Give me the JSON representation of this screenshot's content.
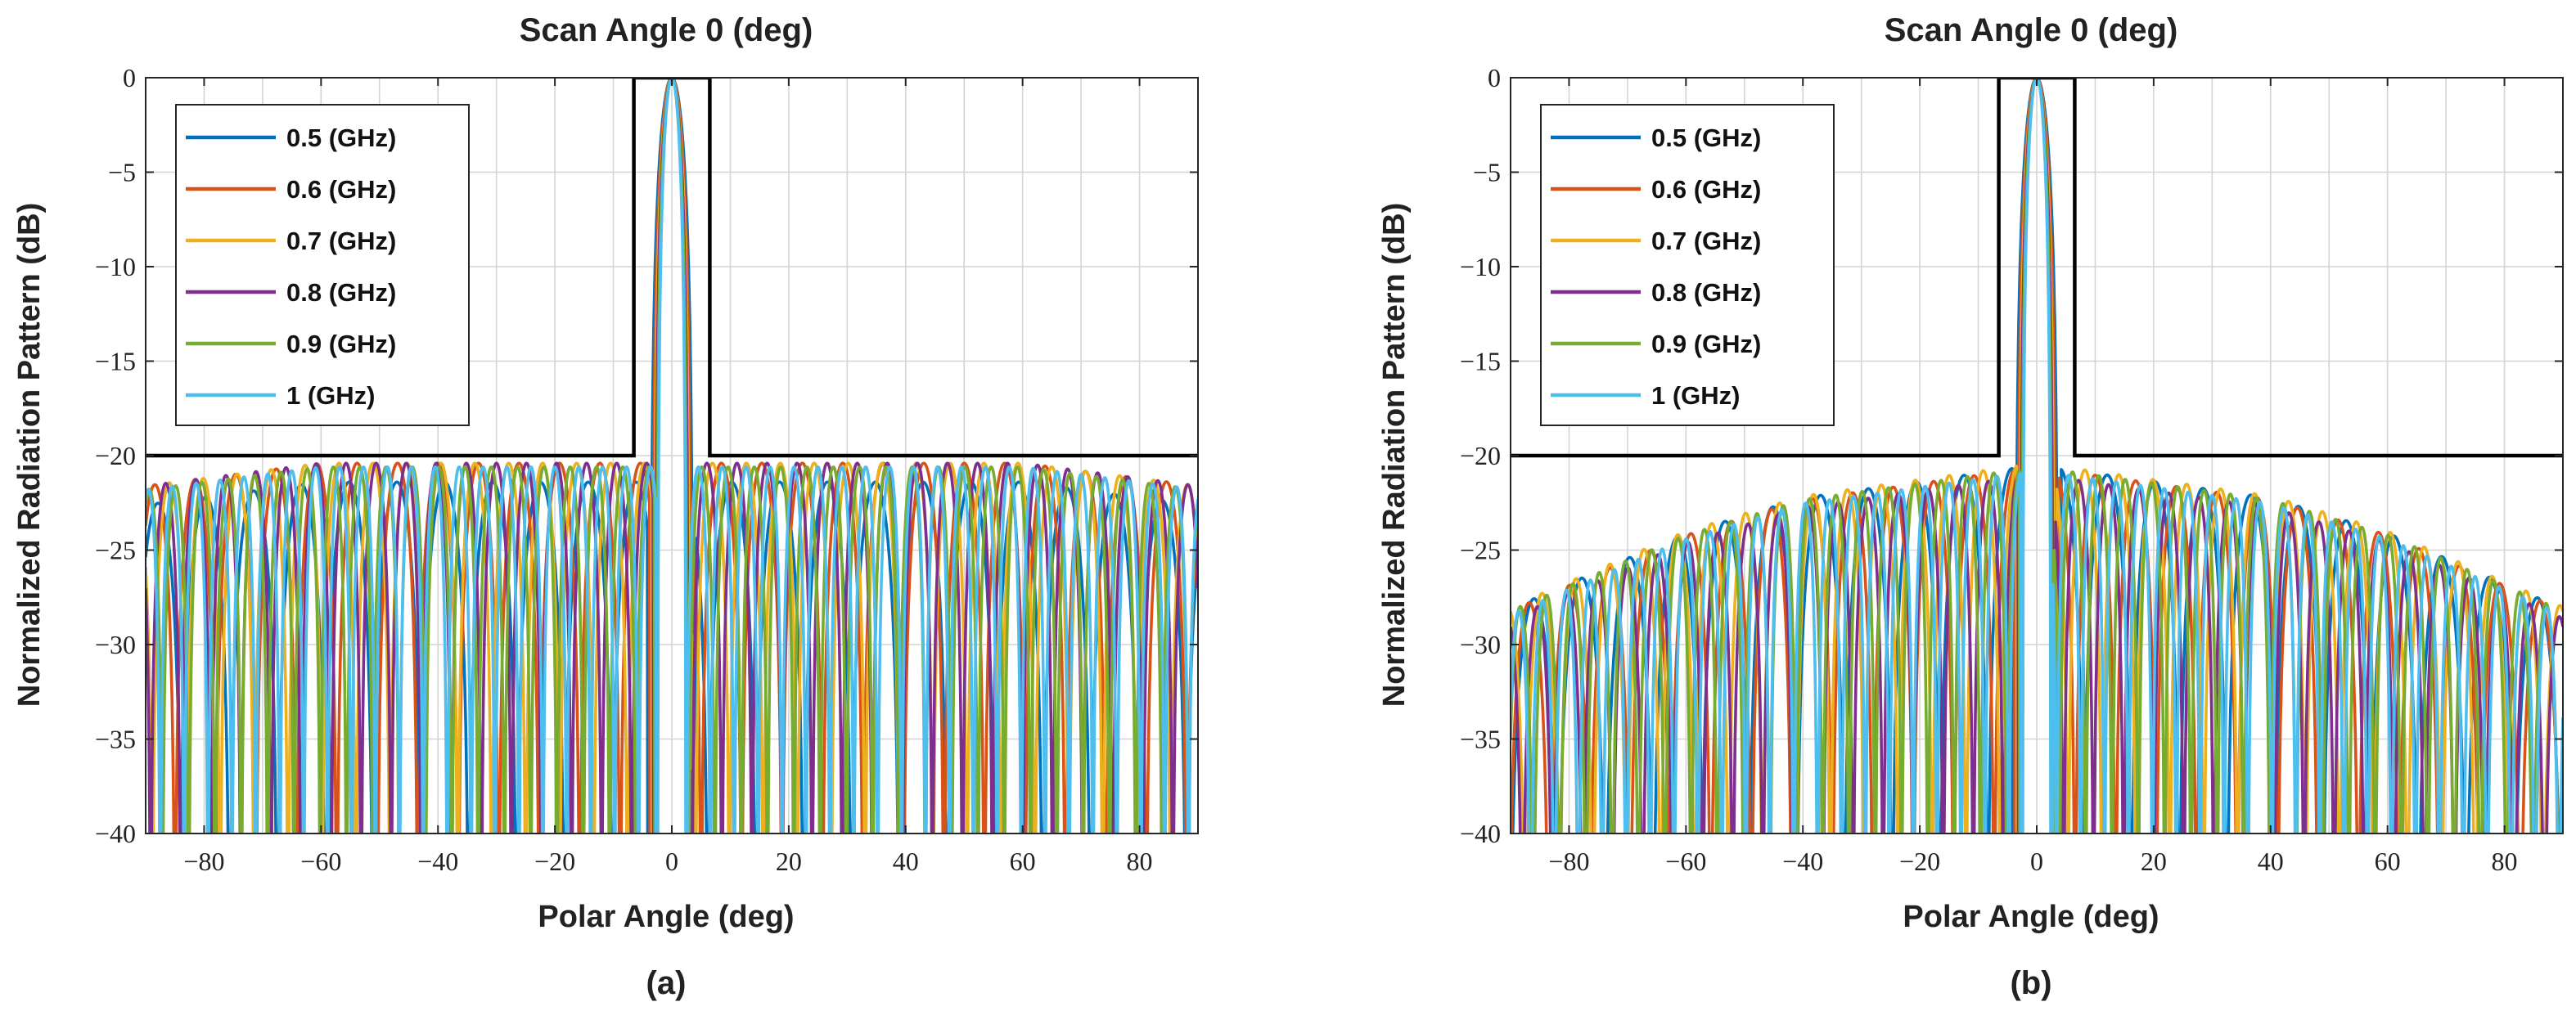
{
  "chart_data": [
    {
      "type": "line",
      "panel_label": "(a)",
      "title": "Scan Angle 0 (deg)",
      "xlabel": "Polar Angle (deg)",
      "ylabel": "Normalized Radiation Pattern (dB)",
      "xlim": [
        -90,
        90
      ],
      "ylim": [
        -40,
        0
      ],
      "xticks": [
        -80,
        -60,
        -40,
        -20,
        0,
        20,
        40,
        60,
        80
      ],
      "yticks": [
        0,
        -5,
        -10,
        -15,
        -20,
        -25,
        -30,
        -35,
        -40
      ],
      "xtick_labels": [
        "−80",
        "−60",
        "−40",
        "−20",
        "0",
        "20",
        "40",
        "60",
        "80"
      ],
      "ytick_labels": [
        "0",
        "−5",
        "−10",
        "−15",
        "−20",
        "−25",
        "−30",
        "−35",
        "−40"
      ],
      "grid": true,
      "legend_location": "top-left",
      "mask": {
        "name": "sidelobe mask",
        "x": [
          -90,
          -6.5,
          -6.5,
          6.5,
          6.5,
          90
        ],
        "y": [
          -20,
          -20,
          0,
          0,
          -20,
          -20
        ],
        "color": "#000000"
      },
      "series": [
        {
          "name": "0.5 (GHz)",
          "freq_ghz": 0.5,
          "color": "#0072BD",
          "mainlobe_halfwidth_deg": 3.6,
          "sidelobe_nulls_approx": 22,
          "sidelobe_peak_db": -21.4
        },
        {
          "name": "0.6 (GHz)",
          "freq_ghz": 0.6,
          "color": "#D95319",
          "mainlobe_halfwidth_deg": 3.3,
          "sidelobe_nulls_approx": 26,
          "sidelobe_peak_db": -20.4
        },
        {
          "name": "0.7 (GHz)",
          "freq_ghz": 0.7,
          "color": "#EDB120",
          "mainlobe_halfwidth_deg": 3.0,
          "sidelobe_nulls_approx": 31,
          "sidelobe_peak_db": -20.4
        },
        {
          "name": "0.8 (GHz)",
          "freq_ghz": 0.8,
          "color": "#7E2F8E",
          "mainlobe_halfwidth_deg": 2.8,
          "sidelobe_nulls_approx": 35,
          "sidelobe_peak_db": -20.4
        },
        {
          "name": "0.9 (GHz)",
          "freq_ghz": 0.9,
          "color": "#77AC30",
          "mainlobe_halfwidth_deg": 2.6,
          "sidelobe_nulls_approx": 40,
          "sidelobe_peak_db": -20.6
        },
        {
          "name": "1 (GHz)",
          "freq_ghz": 1.0,
          "color": "#4DBEEE",
          "mainlobe_halfwidth_deg": 2.4,
          "sidelobe_nulls_approx": 44,
          "sidelobe_peak_db": -20.6
        }
      ]
    },
    {
      "type": "line",
      "panel_label": "(b)",
      "title": "Scan Angle 0 (deg)",
      "xlabel": "Polar Angle (deg)",
      "ylabel": "Normalized Radiation Pattern (dB)",
      "xlim": [
        -90,
        90
      ],
      "ylim": [
        -40,
        0
      ],
      "xticks": [
        -80,
        -60,
        -40,
        -20,
        0,
        20,
        40,
        60,
        80
      ],
      "yticks": [
        0,
        -5,
        -10,
        -15,
        -20,
        -25,
        -30,
        -35,
        -40
      ],
      "xtick_labels": [
        "−80",
        "−60",
        "−40",
        "−20",
        "0",
        "20",
        "40",
        "60",
        "80"
      ],
      "ytick_labels": [
        "0",
        "−5",
        "−10",
        "−15",
        "−20",
        "−25",
        "−30",
        "−35",
        "−40"
      ],
      "grid": true,
      "legend_location": "top-left",
      "mask": {
        "name": "sidelobe mask",
        "x": [
          -90,
          -6.5,
          -6.5,
          6.5,
          6.5,
          90
        ],
        "y": [
          -20,
          -20,
          0,
          0,
          -20,
          -20
        ],
        "color": "#000000"
      },
      "series": [
        {
          "name": "0.5 (GHz)",
          "freq_ghz": 0.5,
          "color": "#0072BD",
          "mainlobe_halfwidth_deg": 3.6,
          "sidelobe_nulls_approx": 22,
          "sidelobe_peak_db": -20.5
        },
        {
          "name": "0.6 (GHz)",
          "freq_ghz": 0.6,
          "color": "#D95319",
          "mainlobe_halfwidth_deg": 3.3,
          "sidelobe_nulls_approx": 26,
          "sidelobe_peak_db": -20.6
        },
        {
          "name": "0.7 (GHz)",
          "freq_ghz": 0.7,
          "color": "#EDB120",
          "mainlobe_halfwidth_deg": 3.0,
          "sidelobe_nulls_approx": 31,
          "sidelobe_peak_db": -20.4
        },
        {
          "name": "0.8 (GHz)",
          "freq_ghz": 0.8,
          "color": "#7E2F8E",
          "mainlobe_halfwidth_deg": 2.8,
          "sidelobe_nulls_approx": 35,
          "sidelobe_peak_db": -21.0
        },
        {
          "name": "0.9 (GHz)",
          "freq_ghz": 0.9,
          "color": "#77AC30",
          "mainlobe_halfwidth_deg": 2.6,
          "sidelobe_nulls_approx": 40,
          "sidelobe_peak_db": -20.6
        },
        {
          "name": "1 (GHz)",
          "freq_ghz": 1.0,
          "color": "#4DBEEE",
          "mainlobe_halfwidth_deg": 2.4,
          "sidelobe_nulls_approx": 44,
          "sidelobe_peak_db": -20.8
        }
      ]
    }
  ]
}
